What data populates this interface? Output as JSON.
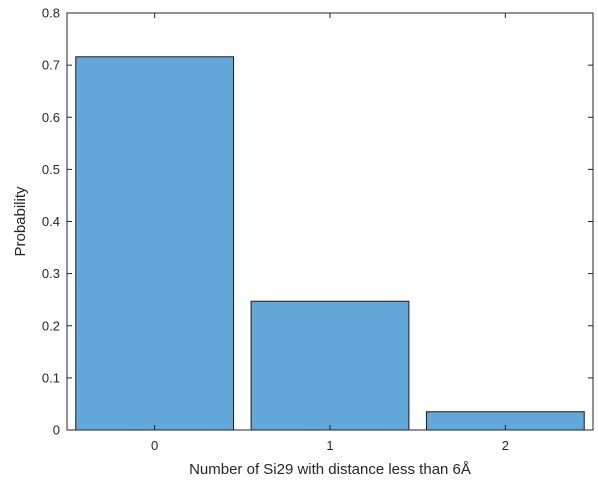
{
  "chart_data": {
    "type": "bar",
    "title": "",
    "xlabel": "Number of Si29 with distance less than 6Å",
    "ylabel": "Probability",
    "categories": [
      "0",
      "1",
      "2"
    ],
    "values": [
      0.716,
      0.247,
      0.035
    ],
    "ylim": [
      0,
      0.8
    ],
    "yticks": [
      "0",
      "0.1",
      "0.2",
      "0.3",
      "0.4",
      "0.5",
      "0.6",
      "0.7",
      "0.8"
    ],
    "grid": false,
    "legend": "none",
    "bar_color": "#62a8d9",
    "edge_color": "#1a1a1a"
  }
}
